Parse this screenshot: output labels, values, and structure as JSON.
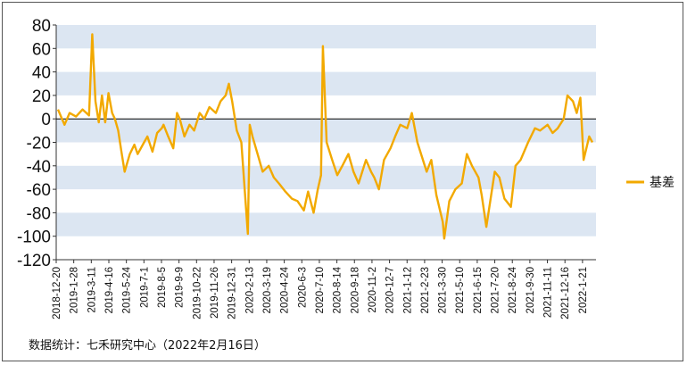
{
  "chart_data": {
    "type": "line",
    "ylim": [
      -120,
      80
    ],
    "yticks": [
      80,
      60,
      40,
      20,
      0,
      -20,
      -40,
      -60,
      -80,
      -100,
      -120
    ],
    "grid_bands": "alternating horizontal light blue bands",
    "legend_position": "right",
    "series": [
      {
        "name": "基差",
        "color": "#F2A900",
        "x": [
          "2018-12-20",
          "2019-1-3",
          "2019-1-14",
          "2019-1-28",
          "2019-2-11",
          "2019-2-25",
          "2019-3-4",
          "2019-3-11",
          "2019-3-18",
          "2019-3-25",
          "2019-4-1",
          "2019-4-8",
          "2019-4-16",
          "2019-4-22",
          "2019-4-29",
          "2019-5-6",
          "2019-5-13",
          "2019-5-24",
          "2019-6-3",
          "2019-6-10",
          "2019-6-17",
          "2019-6-24",
          "2019-7-1",
          "2019-7-12",
          "2019-7-22",
          "2019-8-1",
          "2019-8-5",
          "2019-8-15",
          "2019-8-26",
          "2019-9-3",
          "2019-9-9",
          "2019-9-19",
          "2019-9-30",
          "2019-10-10",
          "2019-10-22",
          "2019-11-1",
          "2019-11-12",
          "2019-11-26",
          "2019-12-6",
          "2019-12-17",
          "2019-12-24",
          "2019-12-31",
          "2020-1-10",
          "2020-1-20",
          "2020-2-3",
          "2020-2-7",
          "2020-2-13",
          "2020-2-24",
          "2020-3-6",
          "2020-3-19",
          "2020-3-30",
          "2020-4-10",
          "2020-4-24",
          "2020-5-8",
          "2020-5-20",
          "2020-6-3",
          "2020-6-12",
          "2020-6-24",
          "2020-7-3",
          "2020-7-10",
          "2020-7-14",
          "2020-7-22",
          "2020-8-3",
          "2020-8-14",
          "2020-8-25",
          "2020-9-7",
          "2020-9-18",
          "2020-9-29",
          "2020-10-15",
          "2020-10-26",
          "2020-11-2",
          "2020-11-12",
          "2020-11-23",
          "2020-12-7",
          "2020-12-17",
          "2020-12-28",
          "2021-1-12",
          "2021-1-22",
          "2021-2-3",
          "2021-2-23",
          "2021-3-5",
          "2021-3-16",
          "2021-3-30",
          "2021-4-2",
          "2021-4-13",
          "2021-4-26",
          "2021-5-10",
          "2021-5-21",
          "2021-6-1",
          "2021-6-15",
          "2021-6-22",
          "2021-7-2",
          "2021-7-20",
          "2021-7-30",
          "2021-8-10",
          "2021-8-24",
          "2021-9-3",
          "2021-9-14",
          "2021-9-30",
          "2021-10-15",
          "2021-10-26",
          "2021-11-11",
          "2021-11-22",
          "2021-12-3",
          "2021-12-16",
          "2021-12-24",
          "2022-1-5",
          "2022-1-13",
          "2022-1-21",
          "2022-1-28",
          "2022-2-9",
          "2022-2-16"
        ],
        "values": [
          8,
          -5,
          5,
          2,
          8,
          3,
          72,
          15,
          -3,
          20,
          -3,
          22,
          5,
          0,
          -10,
          -28,
          -45,
          -30,
          -22,
          -30,
          -25,
          -20,
          -15,
          -28,
          -12,
          -8,
          -5,
          -15,
          -25,
          5,
          0,
          -15,
          -5,
          -10,
          5,
          0,
          10,
          5,
          15,
          20,
          30,
          15,
          -10,
          -20,
          -98,
          -5,
          -15,
          -30,
          -45,
          -40,
          -50,
          -55,
          -62,
          -68,
          -70,
          -78,
          -62,
          -80,
          -60,
          -48,
          62,
          -20,
          -35,
          -48,
          -40,
          -30,
          -45,
          -55,
          -35,
          -45,
          -50,
          -60,
          -35,
          -25,
          -15,
          -5,
          -8,
          5,
          -20,
          -45,
          -35,
          -65,
          -88,
          -102,
          -70,
          -60,
          -55,
          -30,
          -40,
          -50,
          -65,
          -92,
          -45,
          -50,
          -68,
          -75,
          -40,
          -35,
          -20,
          -8,
          -10,
          -5,
          -12,
          -8,
          0,
          20,
          15,
          5,
          18,
          -35,
          -15,
          -20
        ]
      }
    ],
    "x_tick_labels": [
      "2018-12-20",
      "2019-1-28",
      "2019-3-11",
      "2019-4-16",
      "2019-5-24",
      "2019-7-1",
      "2019-8-5",
      "2019-9-9",
      "2019-10-22",
      "2019-11-26",
      "2019-12-31",
      "2020-2-13",
      "2020-3-19",
      "2020-4-24",
      "2020-6-3",
      "2020-7-10",
      "2020-8-14",
      "2020-9-18",
      "2020-11-2",
      "2020-12-7",
      "2021-1-12",
      "2021-2-23",
      "2021-3-30",
      "2021-5-10",
      "2021-6-15",
      "2021-7-20",
      "2021-8-24",
      "2021-9-30",
      "2021-11-11",
      "2021-12-16",
      "2022-1-21"
    ],
    "source_text": "数据统计：七禾研究中心（2022年2月16日）"
  },
  "colors": {
    "line": "#F2A900",
    "band": "#DCE6F2",
    "zero_line": "#000000",
    "axis": "#333333"
  }
}
